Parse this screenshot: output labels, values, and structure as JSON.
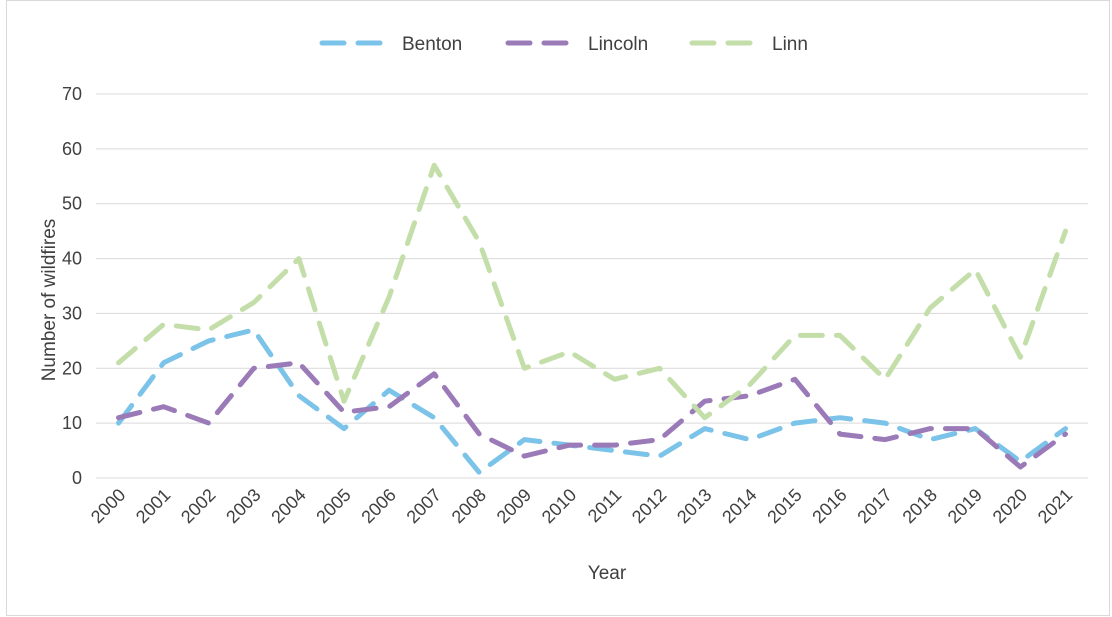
{
  "chart_data": {
    "type": "line",
    "title": "",
    "xlabel": "Year",
    "ylabel": "Number of wildfires",
    "ylim": [
      0,
      70
    ],
    "yticks": [
      0,
      10,
      20,
      30,
      40,
      50,
      60,
      70
    ],
    "grid": true,
    "legend_position": "top",
    "categories": [
      "2000",
      "2001",
      "2002",
      "2003",
      "2004",
      "2005",
      "2006",
      "2007",
      "2008",
      "2009",
      "2010",
      "2011",
      "2012",
      "2013",
      "2014",
      "2015",
      "2016",
      "2017",
      "2018",
      "2019",
      "2020",
      "2021"
    ],
    "series": [
      {
        "name": "Benton",
        "color": "#7bc3e8",
        "values": [
          10,
          21,
          25,
          27,
          15,
          9,
          16,
          11,
          1,
          7,
          6,
          5,
          4,
          9,
          7,
          10,
          11,
          10,
          7,
          9,
          3,
          9
        ]
      },
      {
        "name": "Lincoln",
        "color": "#9b7ab8",
        "values": [
          11,
          13,
          10,
          20,
          21,
          12,
          13,
          19,
          8,
          4,
          6,
          6,
          7,
          14,
          15,
          18,
          8,
          7,
          9,
          9,
          2,
          8
        ]
      },
      {
        "name": "Linn",
        "color": "#c4deaa",
        "values": [
          21,
          28,
          27,
          32,
          40,
          14,
          33,
          57,
          43,
          20,
          23,
          18,
          20,
          11,
          17,
          26,
          26,
          18,
          31,
          38,
          22,
          45
        ]
      }
    ]
  }
}
